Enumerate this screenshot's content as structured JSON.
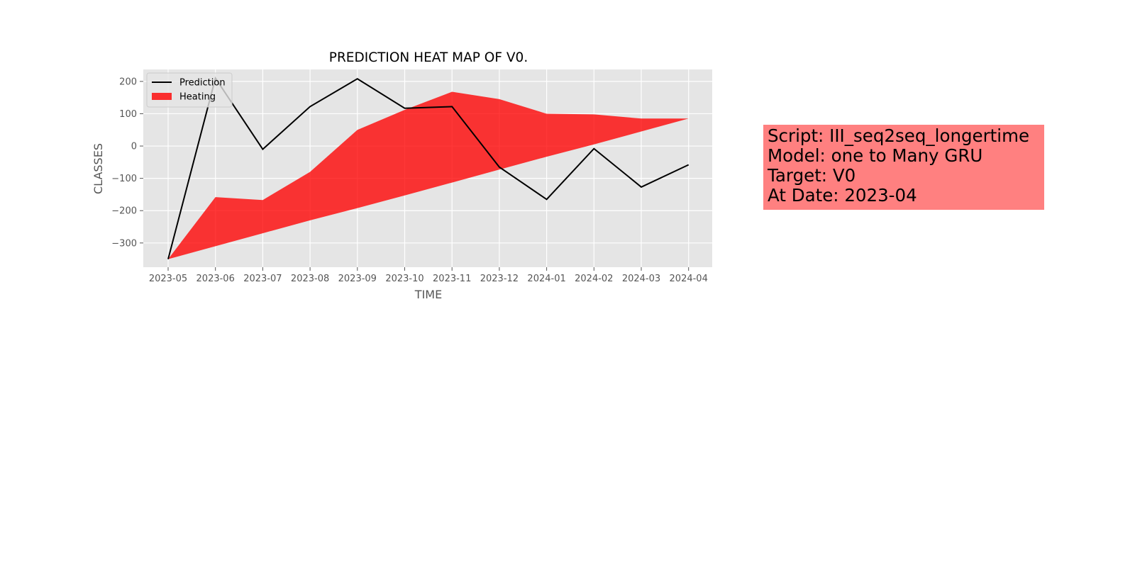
{
  "chart_data": {
    "type": "area",
    "title": "PREDICTION HEAT MAP OF V0.",
    "xlabel": "TIME",
    "ylabel": "CLASSES",
    "x": [
      "2023-05",
      "2023-06",
      "2023-07",
      "2023-08",
      "2023-09",
      "2023-10",
      "2023-11",
      "2023-12",
      "2024-01",
      "2024-02",
      "2024-03",
      "2024-04"
    ],
    "ylim": [
      -375,
      237
    ],
    "yticks": [
      200,
      100,
      0,
      -100,
      -200,
      -300
    ],
    "grid": true,
    "legend_position": "upper-left",
    "series": [
      {
        "name": "Prediction",
        "type": "line",
        "color": "#000000",
        "values": [
          -350,
          210,
          -10,
          122,
          208,
          117,
          122,
          -65,
          -165,
          -8,
          -127,
          -58
        ]
      },
      {
        "name": "Heating",
        "type": "fill_between",
        "color": "#ff0000",
        "upper": [
          -350,
          -158,
          -167,
          -80,
          50,
          112,
          168,
          145,
          100,
          98,
          85,
          85
        ],
        "lower": [
          -350,
          -310,
          -270,
          -230,
          -192,
          -153,
          -113,
          -73,
          -33,
          5,
          45,
          85
        ]
      }
    ],
    "tick_labels_y": [
      "200",
      "100",
      "0",
      "−100",
      "−200",
      "−300"
    ]
  },
  "info_box": {
    "background": "#ff8080",
    "lines": [
      "Script: III_seq2seq_longertime",
      "Model: one to Many GRU",
      "Target: V0",
      "At Date: 2023-04"
    ]
  }
}
